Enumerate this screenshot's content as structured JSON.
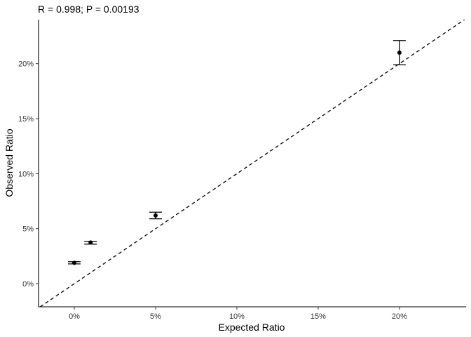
{
  "chart_data": {
    "type": "scatter",
    "title": "R = 0.998; P = 0.00193",
    "xlabel": "Expected Ratio",
    "ylabel": "Observed Ratio",
    "xlim": [
      -2.2,
      24.1
    ],
    "ylim": [
      -2.1,
      24.0
    ],
    "x_ticks": [
      0,
      5,
      10,
      15,
      20
    ],
    "x_tick_labels": [
      "0%",
      "5%",
      "10%",
      "15%",
      "20%"
    ],
    "y_ticks": [
      0,
      5,
      10,
      15,
      20
    ],
    "y_tick_labels": [
      "0%",
      "5%",
      "10%",
      "15%",
      "20%"
    ],
    "grid": false,
    "reference_line": {
      "style": "dashed",
      "slope": 1,
      "intercept": 0
    },
    "points": [
      {
        "x": 0,
        "y": 1.9,
        "ymin": 1.8,
        "ymax": 2.0
      },
      {
        "x": 1,
        "y": 3.75,
        "ymin": 3.6,
        "ymax": 3.85
      },
      {
        "x": 5,
        "y": 6.2,
        "ymin": 5.9,
        "ymax": 6.5
      },
      {
        "x": 20,
        "y": 21.0,
        "ymin": 19.9,
        "ymax": 22.1
      }
    ]
  }
}
